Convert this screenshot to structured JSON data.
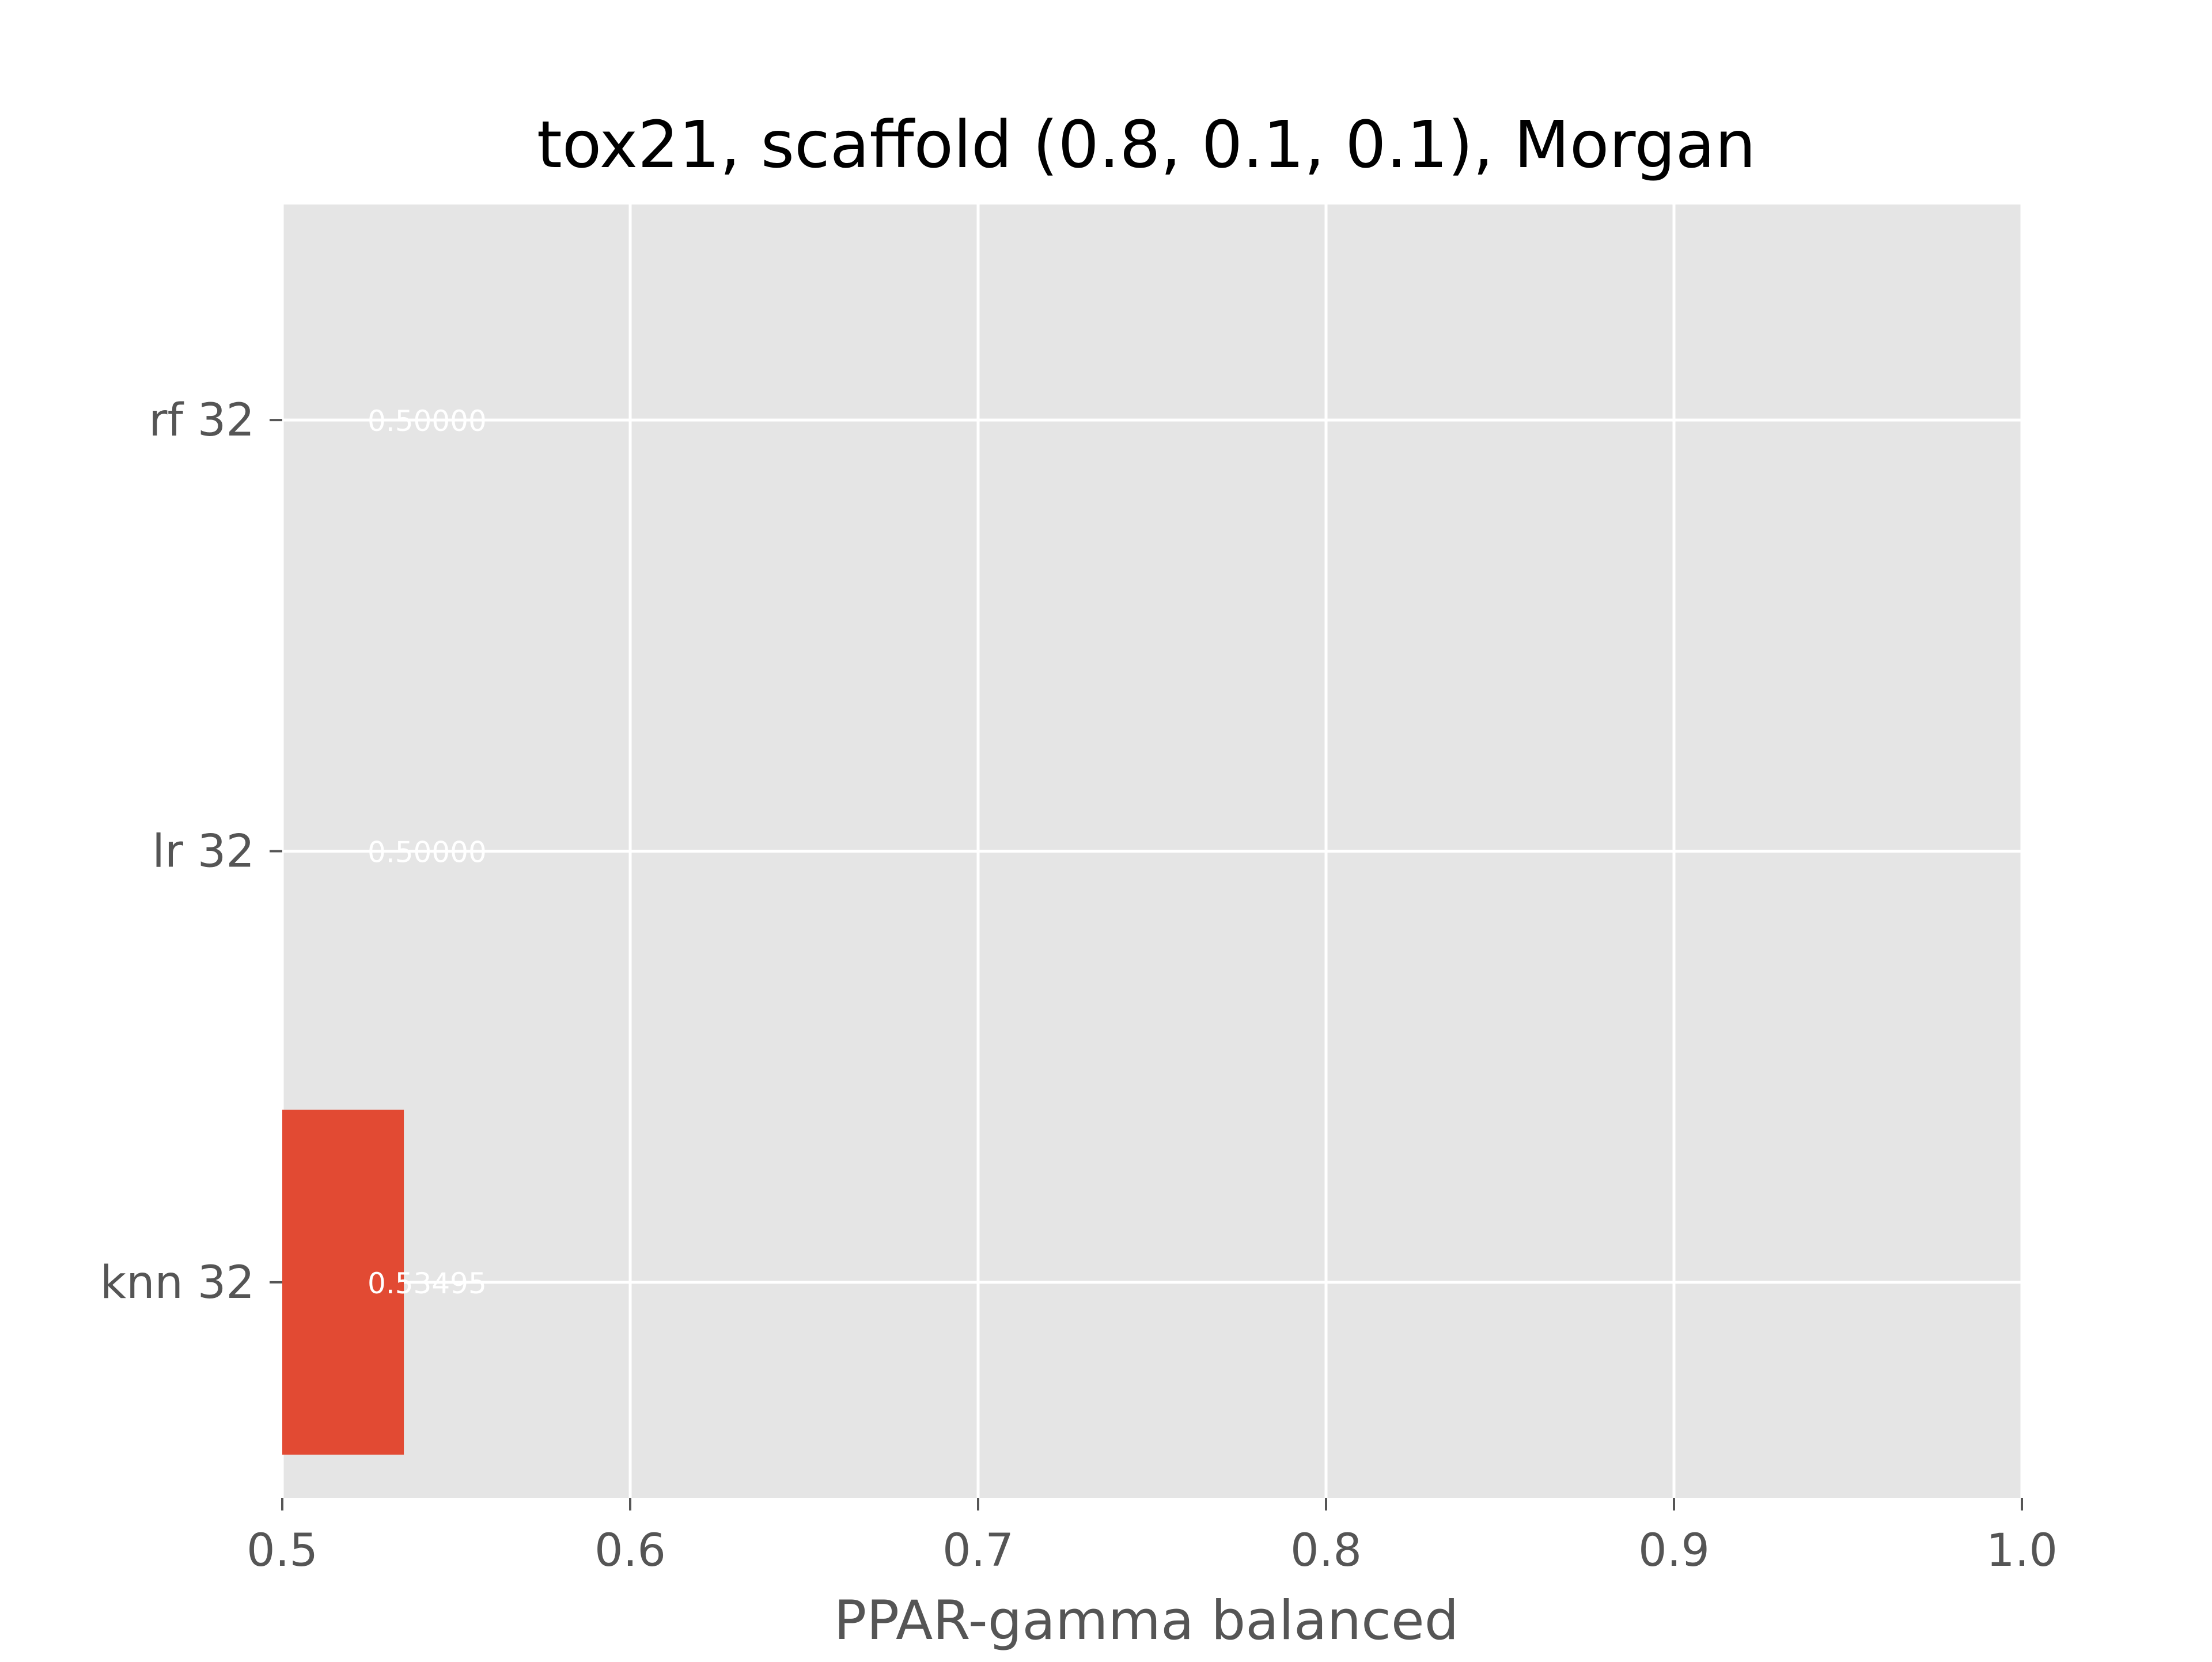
{
  "chart_data": {
    "type": "bar",
    "orientation": "horizontal",
    "title": "tox21, scaffold (0.8, 0.1, 0.1), Morgan",
    "xlabel": "PPAR-gamma balanced",
    "ylabel": "",
    "categories": [
      "knn 32",
      "lr 32",
      "rf 32"
    ],
    "values": [
      0.53495,
      0.5,
      0.5
    ],
    "value_labels": [
      "0.53495",
      "0.50000",
      "0.50000"
    ],
    "xlim": [
      0.5,
      1.0
    ],
    "xticks": [
      "0.5",
      "0.6",
      "0.7",
      "0.8",
      "0.9",
      "1.0"
    ],
    "grid": true,
    "colors": {
      "bar": "#E24A33",
      "plot_background": "#E5E5E5",
      "grid": "#FFFFFF",
      "tick_text": "#555555",
      "title_text": "#000000",
      "value_label": "#FFFFFF"
    }
  }
}
